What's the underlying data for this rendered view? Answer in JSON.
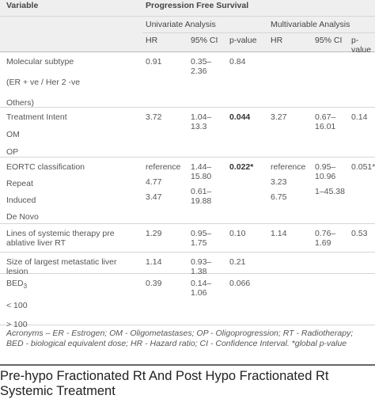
{
  "table": {
    "header": {
      "variable": "Variable",
      "group": "Progression Free Survival",
      "univariate": "Univariate Analysis",
      "multivariable": "Multivariable Analysis",
      "columns": [
        "HR",
        "95% CI",
        "p-value",
        "HR",
        "95% CI",
        "p-value"
      ]
    },
    "rows": [
      {
        "labels": [
          "Molecular subtype",
          "(ER + ve / Her 2 -ve",
          "Others)"
        ],
        "cells": [
          [
            "0.91"
          ],
          [
            "0.35–2.36"
          ],
          [
            "0.84"
          ],
          [],
          [],
          []
        ]
      },
      {
        "labels": [
          "Treatment Intent",
          "OM",
          "OP"
        ],
        "cells": [
          [
            "3.72"
          ],
          [
            "1.04–13.3"
          ],
          [
            {
              "text": "0.044",
              "bold": true
            }
          ],
          [
            "3.27"
          ],
          [
            "0.67–16.01"
          ],
          [
            "0.14"
          ]
        ]
      },
      {
        "labels": [
          "EORTC classification",
          "Repeat",
          "Induced",
          "De Novo"
        ],
        "cells": [
          [
            "reference",
            "4.77",
            "3.47"
          ],
          [
            "1.44–15.80",
            "0.61–19.88"
          ],
          [
            {
              "text": "0.022*",
              "bold": true
            }
          ],
          [
            "reference",
            "3.23",
            "6.75"
          ],
          [
            "0.95–10.96",
            "1–45.38"
          ],
          [
            "0.051*"
          ]
        ]
      },
      {
        "labels": [
          "Lines of systemic therapy pre ablative liver RT"
        ],
        "cells": [
          [
            "1.29"
          ],
          [
            "0.95–1.75"
          ],
          [
            "0.10"
          ],
          [
            "1.14"
          ],
          [
            "0.76–1.69"
          ],
          [
            "0.53"
          ]
        ]
      },
      {
        "labels": [
          "Size of largest metastatic liver lesion"
        ],
        "cells": [
          [
            "1.14"
          ],
          [
            "0.93–1.38"
          ],
          [
            "0.21"
          ],
          [],
          [],
          []
        ]
      },
      {
        "labels": [
          "BED",
          "< 100",
          "> 100"
        ],
        "subscript": "3",
        "cells": [
          [
            "0.39"
          ],
          [
            "0.14–1.06"
          ],
          [
            "0.066"
          ],
          [],
          [],
          []
        ]
      }
    ],
    "footnote": "Acronyms – ER - Estrogen; OM - Oligometastases; OP - Oligoprogression; RT - Radiotherapy; BED - biological equivalent dose; HR - Hazard ratio; CI - Confidence Interval. *global p-value"
  },
  "heading": "Pre-hypo Fractionated Rt And Post Hypo Fractionated Rt Systemic Treatment"
}
